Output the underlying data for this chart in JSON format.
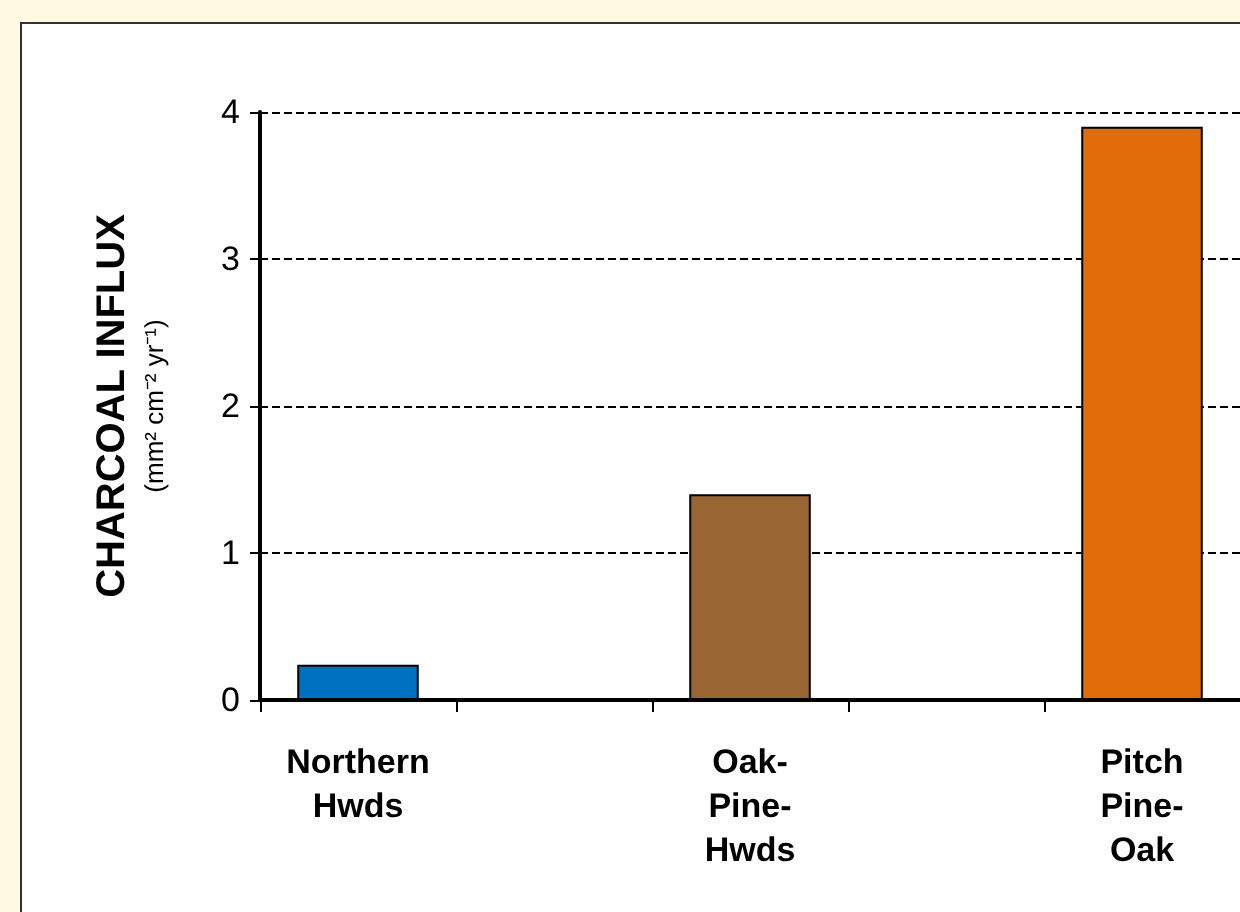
{
  "chart_data": {
    "type": "bar",
    "ylabel": "CHARCOAL INFLUX\n(mm² cm⁻² yr⁻¹)",
    "categories": [
      "Northern Hwds",
      null,
      "Oak-Pine-Hwds",
      null,
      "Pitch Pine-Oak"
    ],
    "values": [
      0.24,
      null,
      1.4,
      null,
      3.9
    ],
    "colors": [
      "#0070c0",
      null,
      "#996633",
      null,
      "#e36c0a"
    ],
    "ylim": [
      0,
      4
    ],
    "yticks": [
      0,
      1,
      2,
      3,
      4
    ],
    "grid": "y"
  }
}
